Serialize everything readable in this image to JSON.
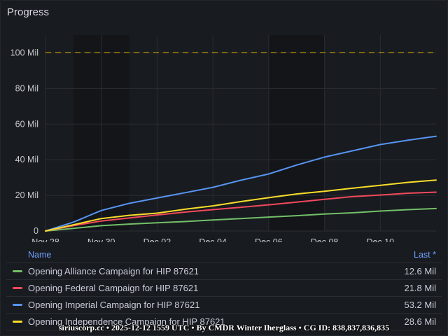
{
  "panel": {
    "title": "Progress"
  },
  "legend": {
    "name_header": "Name",
    "last_header": "Last *",
    "items": [
      {
        "name": "Opening Alliance Campaign for HIP 87621",
        "last": "12.6 Mil",
        "color": "#73bf69"
      },
      {
        "name": "Opening Federal Campaign for HIP 87621",
        "last": "21.8 Mil",
        "color": "#f2495c"
      },
      {
        "name": "Opening Imperial Campaign for HIP 87621",
        "last": "53.2 Mil",
        "color": "#5794f2"
      },
      {
        "name": "Opening Independence Campaign for HIP 87621",
        "last": "28.6 Mil",
        "color": "#fade2a"
      }
    ]
  },
  "footer": {
    "text": "siriuscorp.cc • 2025-12-12 1559 UTC • By CMDR Winter Iherglass • CG ID: 838,837,836,835"
  },
  "chart_data": {
    "type": "line",
    "x_range": [
      "2025-11-28",
      "2025-12-12"
    ],
    "xticks": [
      {
        "date": "2025-11-28",
        "label": "Nov 28"
      },
      {
        "date": "2025-11-30",
        "label": "Nov 30"
      },
      {
        "date": "2025-12-02",
        "label": "Dec 02"
      },
      {
        "date": "2025-12-04",
        "label": "Dec 04"
      },
      {
        "date": "2025-12-06",
        "label": "Dec 06"
      },
      {
        "date": "2025-12-08",
        "label": "Dec 08"
      },
      {
        "date": "2025-12-10",
        "label": "Dec 10"
      }
    ],
    "ylim": [
      0,
      110
    ],
    "yticks": [
      {
        "value": 0,
        "label": "0"
      },
      {
        "value": 20,
        "label": "20 Mil"
      },
      {
        "value": 40,
        "label": "40 Mil"
      },
      {
        "value": 60,
        "label": "60 Mil"
      },
      {
        "value": 80,
        "label": "80 Mil"
      },
      {
        "value": 100,
        "label": "100 Mil"
      }
    ],
    "threshold": {
      "value": 100,
      "color": "#e0b400",
      "style": "dashed"
    },
    "shaded_bands": [
      [
        "2025-11-29",
        "2025-12-01"
      ],
      [
        "2025-12-06",
        "2025-12-08"
      ]
    ],
    "grid": true,
    "legend_placement": "bottom",
    "x": [
      "2025-11-28",
      "2025-11-29",
      "2025-11-30",
      "2025-12-01",
      "2025-12-02",
      "2025-12-03",
      "2025-12-04",
      "2025-12-05",
      "2025-12-06",
      "2025-12-07",
      "2025-12-08",
      "2025-12-09",
      "2025-12-10",
      "2025-12-11",
      "2025-12-12"
    ],
    "series": [
      {
        "name": "Opening Alliance Campaign for HIP 87621",
        "color": "#73bf69",
        "values": [
          0,
          1.5,
          3.0,
          3.9,
          4.6,
          5.3,
          6.2,
          7.0,
          7.8,
          8.6,
          9.5,
          10.2,
          11.2,
          12.0,
          12.6
        ]
      },
      {
        "name": "Opening Federal Campaign for HIP 87621",
        "color": "#f2495c",
        "values": [
          0,
          3.0,
          5.6,
          7.3,
          9.0,
          10.6,
          12.0,
          13.3,
          14.7,
          16.2,
          17.8,
          19.3,
          20.2,
          21.2,
          21.8
        ]
      },
      {
        "name": "Opening Imperial Campaign for HIP 87621",
        "color": "#5794f2",
        "values": [
          0,
          5.0,
          11.5,
          15.5,
          18.5,
          21.5,
          24.5,
          28.5,
          32.0,
          37.0,
          41.5,
          45.0,
          48.5,
          51.0,
          53.2
        ]
      },
      {
        "name": "Opening Independence Campaign for HIP 87621",
        "color": "#fade2a",
        "values": [
          0,
          3.5,
          7.0,
          8.8,
          10.0,
          12.2,
          14.1,
          16.5,
          18.7,
          20.8,
          22.3,
          24.0,
          25.6,
          27.3,
          28.6
        ]
      }
    ]
  }
}
